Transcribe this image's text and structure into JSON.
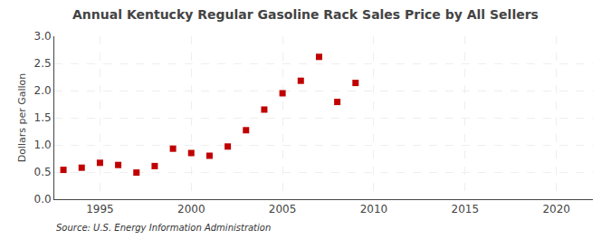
{
  "chart_data": {
    "type": "scatter",
    "title": "Annual Kentucky Regular Gasoline Rack Sales Price by All Sellers",
    "ylabel": "Dollars per Gallon",
    "annotations": [
      "Source: U.S. Energy Information Administration"
    ],
    "x": [
      1993,
      1994,
      1995,
      1996,
      1997,
      1998,
      1999,
      2000,
      2001,
      2002,
      2003,
      2004,
      2005,
      2006,
      2007,
      2008,
      2009,
      2010
    ],
    "values": [
      0.54,
      0.58,
      0.67,
      0.63,
      0.49,
      0.61,
      0.93,
      0.85,
      0.8,
      0.97,
      1.27,
      1.65,
      1.95,
      2.18,
      2.62,
      1.79,
      2.14,
      null
    ],
    "color": "#c00000",
    "marker": "square",
    "xlim": [
      1992.5,
      2022
    ],
    "ylim": [
      0.0,
      3.0
    ],
    "xticks": [
      1995,
      2000,
      2005,
      2010,
      2015,
      2020
    ],
    "yticks": [
      {
        "value": 0.0,
        "label": "0.0"
      },
      0.5,
      {
        "value": 1.0,
        "label": "1.0"
      },
      1.5,
      {
        "value": 2.0,
        "label": "2.0"
      },
      2.5,
      {
        "value": 3.0,
        "label": "3.0"
      }
    ],
    "grid": true
  }
}
